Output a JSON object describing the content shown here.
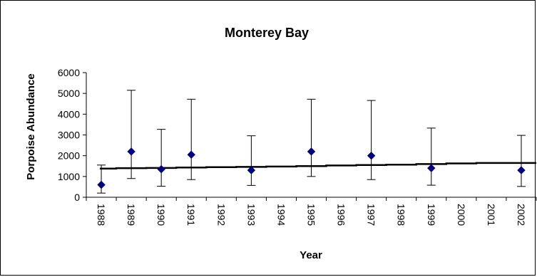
{
  "chart_data": {
    "type": "scatter",
    "title": "Monterey Bay",
    "xlabel": "Year",
    "ylabel": "Porpoise Abundance",
    "ylim": [
      0,
      6000
    ],
    "yticks": [
      0,
      1000,
      2000,
      3000,
      4000,
      5000,
      6000
    ],
    "categories": [
      "1988",
      "1989",
      "1990",
      "1991",
      "1992",
      "1993",
      "1994",
      "1995",
      "1996",
      "1997",
      "1998",
      "1999",
      "2000",
      "2001",
      "2002"
    ],
    "grid": false,
    "legend": "none",
    "colors": {
      "marker": "#000080",
      "trend": "#000000",
      "error_bar": "#000000"
    },
    "series": [
      {
        "type": "scatter",
        "marker": "diamond",
        "points": [
          {
            "x": "1988",
            "y": 600,
            "low": 200,
            "high": 1550
          },
          {
            "x": "1989",
            "y": 2200,
            "low": 900,
            "high": 5150
          },
          {
            "x": "1990",
            "y": 1350,
            "low": 530,
            "high": 3270
          },
          {
            "x": "1991",
            "y": 2050,
            "low": 850,
            "high": 4720
          },
          {
            "x": "1993",
            "y": 1300,
            "low": 570,
            "high": 2960
          },
          {
            "x": "1995",
            "y": 2200,
            "low": 1000,
            "high": 4720
          },
          {
            "x": "1997",
            "y": 2000,
            "low": 850,
            "high": 4660
          },
          {
            "x": "1999",
            "y": 1400,
            "low": 580,
            "high": 3330
          },
          {
            "x": "2002",
            "y": 1300,
            "low": 520,
            "high": 2980
          }
        ]
      },
      {
        "type": "line",
        "style": "step",
        "values": [
          1380,
          1400,
          1410,
          1430,
          1450,
          1460,
          1480,
          1500,
          1530,
          1550,
          1570,
          1600,
          1630,
          1650,
          1650
        ]
      }
    ]
  }
}
